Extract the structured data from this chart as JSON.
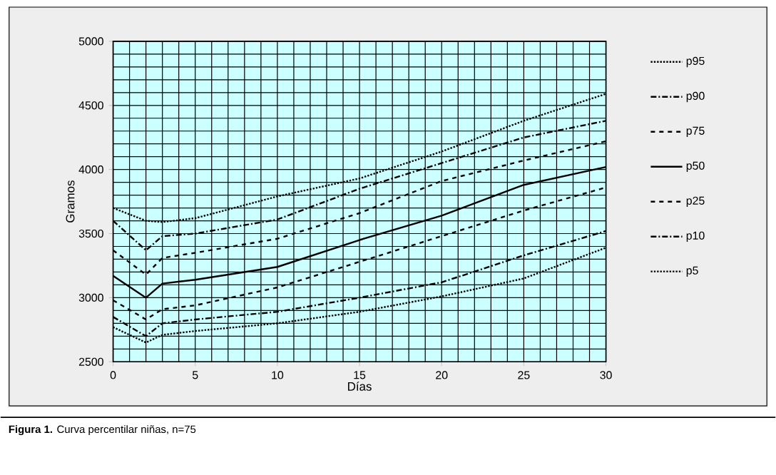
{
  "chart_data": {
    "type": "line",
    "xlabel": "Días",
    "ylabel": "Gramos",
    "annotations": [
      "**Figura 1.** Curva percentilar niñas, n=75"
    ],
    "x": [
      0,
      2,
      3,
      5,
      10,
      15,
      20,
      25,
      30
    ],
    "xlim": [
      0,
      30
    ],
    "xticks": [
      0,
      5,
      10,
      15,
      20,
      25,
      30
    ],
    "ylim": [
      2500,
      5000
    ],
    "yticks": [
      2500,
      3000,
      3500,
      4000,
      4500,
      5000
    ],
    "grid": true,
    "legend": "right",
    "marker": "none",
    "series": [
      {
        "name": "p95",
        "color": "#000000",
        "line_style": "dotted",
        "values": [
          3700,
          3600,
          3590,
          3620,
          3790,
          3930,
          4140,
          4380,
          4590
        ]
      },
      {
        "name": "p90",
        "color": "#000000",
        "line_style": "dashdotted",
        "values": [
          3600,
          3370,
          3480,
          3500,
          3610,
          3850,
          4050,
          4250,
          4380
        ]
      },
      {
        "name": "p75",
        "color": "#000000",
        "line_style": "dashed",
        "values": [
          3370,
          3180,
          3310,
          3350,
          3460,
          3660,
          3910,
          4070,
          4220
        ]
      },
      {
        "name": "p50",
        "color": "#000000",
        "line_style": "solid",
        "values": [
          3170,
          3000,
          3110,
          3140,
          3240,
          3450,
          3640,
          3880,
          4020
        ]
      },
      {
        "name": "p25",
        "color": "#000000",
        "line_style": "dashed",
        "values": [
          2980,
          2830,
          2910,
          2940,
          3080,
          3280,
          3480,
          3680,
          3860
        ]
      },
      {
        "name": "p10",
        "color": "#000000",
        "line_style": "dashdotted",
        "values": [
          2850,
          2700,
          2800,
          2830,
          2890,
          3000,
          3120,
          3330,
          3520
        ]
      },
      {
        "name": "p5",
        "color": "#000000",
        "line_style": "dotted",
        "values": [
          2770,
          2650,
          2710,
          2740,
          2800,
          2890,
          3010,
          3150,
          3390
        ]
      }
    ]
  }
}
